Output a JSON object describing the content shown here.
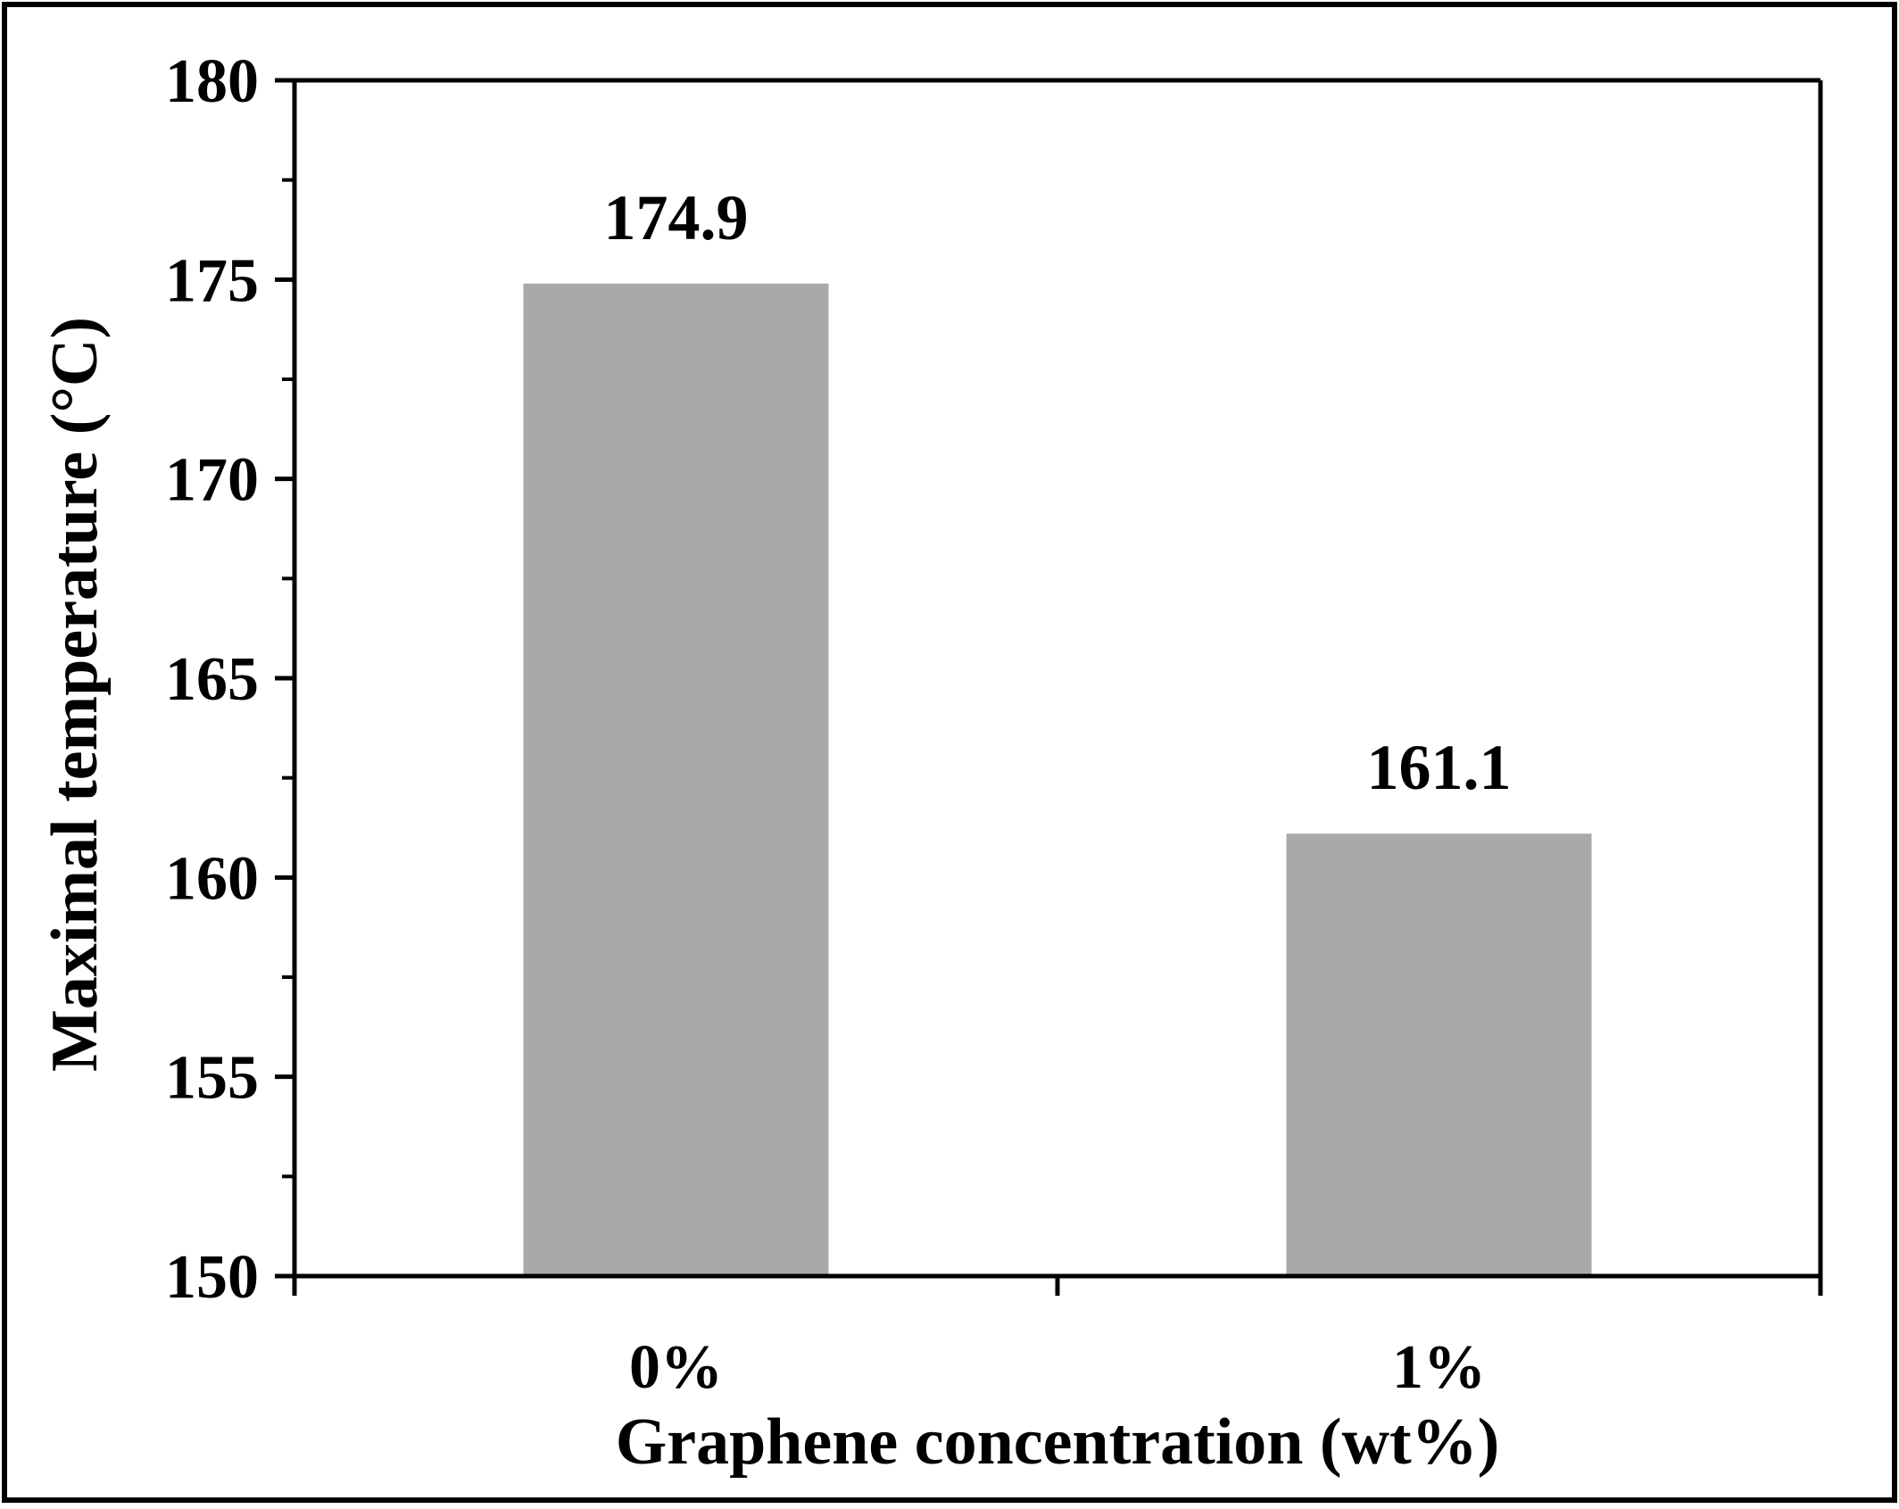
{
  "chart_data": {
    "type": "bar",
    "categories": [
      "0%",
      "1%"
    ],
    "values": [
      174.9,
      161.1
    ],
    "data_labels": [
      "174.9",
      "161.1"
    ],
    "title": "",
    "xlabel": "Graphene concentration (wt%)",
    "ylabel": "Maximal temperature (°C)",
    "ylim": [
      150,
      180
    ],
    "yticks": [
      150,
      155,
      160,
      165,
      170,
      175,
      180
    ],
    "ytick_labels": [
      "150",
      "155",
      "160",
      "165",
      "170",
      "175",
      "180"
    ],
    "minor_yticks": true,
    "grid": false,
    "legend": "none",
    "bar_color": "#a9a9a9",
    "axis_color": "#000000"
  }
}
